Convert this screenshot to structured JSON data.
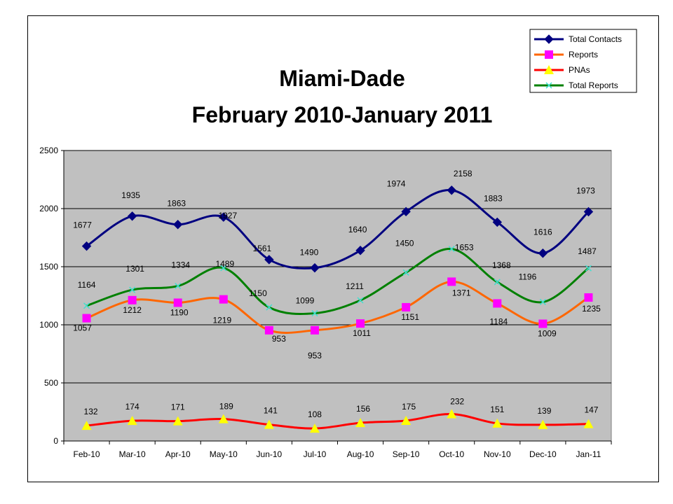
{
  "chart_data": {
    "type": "line",
    "title": "Miami-Dade",
    "subtitle": "February 2010-January 2011",
    "categories": [
      "Feb-10",
      "Mar-10",
      "Apr-10",
      "May-10",
      "Jun-10",
      "Jul-10",
      "Aug-10",
      "Sep-10",
      "Oct-10",
      "Nov-10",
      "Dec-10",
      "Jan-11"
    ],
    "ylim": [
      0,
      2500
    ],
    "yticks": [
      "0",
      "500",
      "1000",
      "1500",
      "2000",
      "2500"
    ],
    "grid": true,
    "legend_position": "top-right",
    "plot_background": "#c0c0c0",
    "series": [
      {
        "name": "Total Contacts",
        "color": "#000080",
        "marker": "diamond",
        "values": [
          1677,
          1935,
          1863,
          1927,
          1561,
          1490,
          1640,
          1974,
          2158,
          1883,
          1616,
          1973
        ]
      },
      {
        "name": "Reports",
        "color": "#ff6600",
        "marker": "square",
        "marker_color": "#ff00ff",
        "values": [
          1057,
          1212,
          1190,
          1219,
          953,
          953,
          1011,
          1151,
          1371,
          1184,
          1009,
          1235
        ]
      },
      {
        "name": "PNAs",
        "color": "#ff0000",
        "marker": "triangle",
        "marker_color": "#ffff00",
        "values": [
          132,
          174,
          171,
          189,
          141,
          108,
          156,
          175,
          232,
          151,
          139,
          147
        ]
      },
      {
        "name": "Total Reports",
        "color": "#008000",
        "marker": "x",
        "marker_color": "#40e0d0",
        "values": [
          1164,
          1301,
          1334,
          1489,
          1150,
          1099,
          1211,
          1450,
          1653,
          1368,
          1196,
          1487
        ]
      }
    ]
  }
}
